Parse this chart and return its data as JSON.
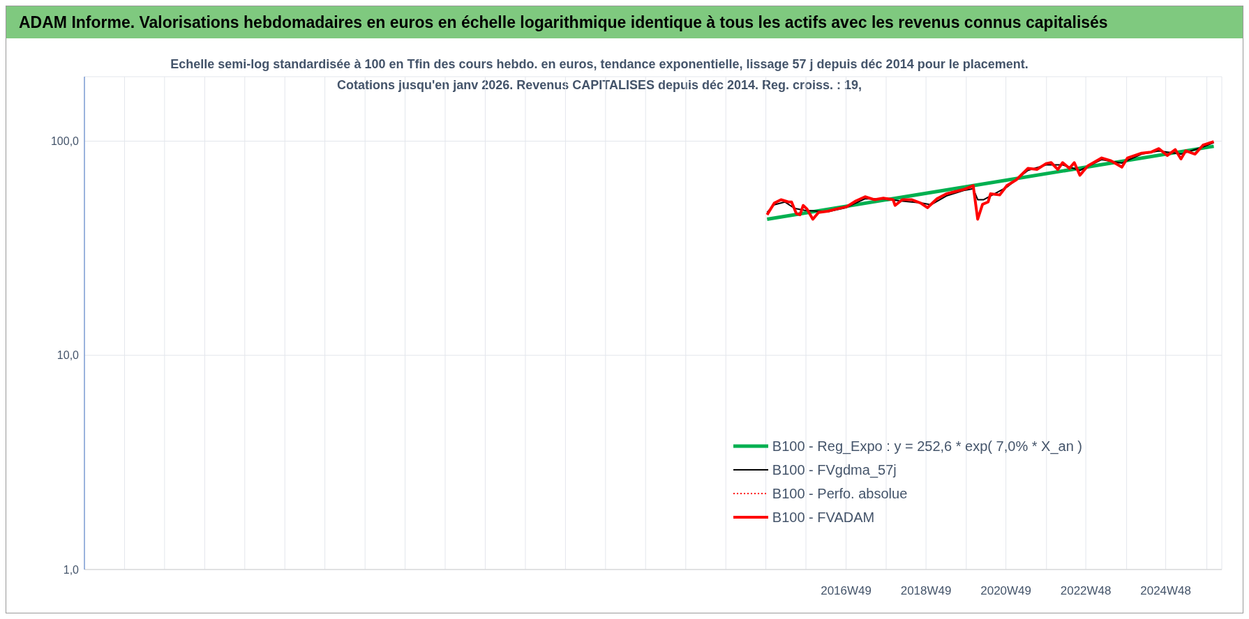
{
  "chart_data": {
    "type": "line",
    "title": "ADAM Informe. Valorisations hebdomadaires en euros en échelle logarithmique identique à tous les actifs avec les revenus connus capitalisés",
    "subtitle": "Echelle semi-log standardisée à 100 en Tfin des cours hebdo. en euros, tendance exponentielle, lissage 57 j depuis déc 2014 pour le placement. Cotations jusqu'en janv 2026. Revenus CAPITALISES depuis déc 2014. Reg. croiss. : 19,",
    "log": "y",
    "grid": true,
    "legend": "bottom right",
    "ylim": [
      1,
      200
    ],
    "yticks": [
      {
        "value": 1,
        "label": "1,0"
      },
      {
        "value": 10,
        "label": "10,0"
      },
      {
        "value": 100,
        "label": "100,0"
      }
    ],
    "xlim": [
      "1997-12-05",
      "2026-04-20"
    ],
    "xticks": [
      {
        "value": "1997-12-05",
        "label": null
      },
      {
        "value": "1998-12-05",
        "label": null
      },
      {
        "value": "1999-12-05",
        "label": null
      },
      {
        "value": "2000-12-05",
        "label": null
      },
      {
        "value": "2001-12-05",
        "label": null
      },
      {
        "value": "2002-12-05",
        "label": null
      },
      {
        "value": "2003-12-05",
        "label": null
      },
      {
        "value": "2004-12-05",
        "label": null
      },
      {
        "value": "2005-12-05",
        "label": null
      },
      {
        "value": "2006-12-05",
        "label": null
      },
      {
        "value": "2007-12-05",
        "label": null
      },
      {
        "value": "2008-12-05",
        "label": null
      },
      {
        "value": "2009-12-05",
        "label": null
      },
      {
        "value": "2010-12-05",
        "label": null
      },
      {
        "value": "2011-12-05",
        "label": null
      },
      {
        "value": "2012-12-05",
        "label": null
      },
      {
        "value": "2013-12-05",
        "label": null
      },
      {
        "value": "2014-12-05",
        "label": null
      },
      {
        "value": "2015-12-05",
        "label": null
      },
      {
        "value": "2016-12-05",
        "label": "2016W49"
      },
      {
        "value": "2017-12-05",
        "label": null
      },
      {
        "value": "2018-12-03",
        "label": "2018W49"
      },
      {
        "value": "2019-12-05",
        "label": null
      },
      {
        "value": "2020-11-30",
        "label": "2020W49"
      },
      {
        "value": "2021-12-05",
        "label": null
      },
      {
        "value": "2022-11-28",
        "label": "2022W48"
      },
      {
        "value": "2023-12-05",
        "label": null
      },
      {
        "value": "2024-11-25",
        "label": "2024W48"
      },
      {
        "value": "2025-12-05",
        "label": null
      }
    ],
    "series": [
      {
        "name": "B100 - Reg_Expo : y = 252,6 * exp( 7,0% *  X_an )",
        "color": "#00b050",
        "line_style": "solid",
        "x": [
          "2014-12-16",
          "2026-02-06"
        ],
        "values": [
          43.2,
          94.6
        ]
      },
      {
        "name": "B100 - FVgdma_57j",
        "color": "#000000",
        "line_style": "solid",
        "x": [
          "2014-12-16",
          "2015-02-20",
          "2015-05-27",
          "2015-08-26",
          "2015-11-24",
          "2016-06-21",
          "2016-12-09",
          "2017-05-27",
          "2017-11-10",
          "2018-05-01",
          "2018-10-16",
          "2019-01-19",
          "2019-06-07",
          "2019-11-21",
          "2020-02-06",
          "2020-03-18",
          "2020-05-12",
          "2020-07-13",
          "2020-12-09",
          "2021-06-18",
          "2021-12-02",
          "2022-05-01",
          "2022-10-05",
          "2023-04-22",
          "2023-10-23",
          "2024-04-20",
          "2024-09-24",
          "2025-04-13",
          "2025-10-31",
          "2026-02-06"
        ],
        "values": [
          46.5,
          50.5,
          52,
          48.5,
          47.5,
          46.8,
          49,
          53.8,
          53.8,
          52.5,
          51.5,
          50.5,
          55.5,
          59,
          60,
          53.3,
          53.3,
          55.5,
          61,
          73,
          77.5,
          77.5,
          73,
          82,
          79,
          87,
          90,
          87,
          94,
          98.5
        ]
      },
      {
        "name": "B100 - Perfo. absolue",
        "color": "#ff0000",
        "line_style": "dotted"
      },
      {
        "name": "B100 - FVADAM",
        "color": "#ff0000",
        "line_style": "solid",
        "x": [
          "2014-12-16",
          "2015-02-20",
          "2015-04-22",
          "2015-06-28",
          "2015-07-27",
          "2015-09-09",
          "2015-10-12",
          "2015-11-10",
          "2015-12-13",
          "2016-02-06",
          "2016-03-29",
          "2016-06-21",
          "2016-09-13",
          "2016-12-09",
          "2017-03-04",
          "2017-05-27",
          "2017-08-19",
          "2017-11-10",
          "2018-02-06",
          "2018-02-24",
          "2018-05-01",
          "2018-07-24",
          "2018-10-16",
          "2018-12-16",
          "2019-03-14",
          "2019-06-07",
          "2019-08-29",
          "2019-11-21",
          "2020-02-06",
          "2020-03-18",
          "2020-05-01",
          "2020-06-21",
          "2020-07-13",
          "2020-10-05",
          "2020-12-09",
          "2021-03-04",
          "2021-06-18",
          "2021-09-09",
          "2021-12-02",
          "2022-01-16",
          "2022-03-18",
          "2022-05-01",
          "2022-07-02",
          "2022-08-15",
          "2022-10-05",
          "2022-12-16",
          "2023-04-22",
          "2023-07-16",
          "2023-10-23",
          "2023-12-13",
          "2024-04-20",
          "2024-07-13",
          "2024-09-24",
          "2024-12-09",
          "2025-02-20",
          "2025-04-13",
          "2025-05-27",
          "2025-08-19",
          "2025-10-31",
          "2026-02-06"
        ],
        "values": [
          45.3,
          51.4,
          53.3,
          52,
          52,
          45.9,
          45.3,
          50.1,
          48.3,
          43.2,
          46.5,
          47.1,
          48.3,
          49.4,
          52.6,
          55,
          53.3,
          54.2,
          53.3,
          50.1,
          53.3,
          53.3,
          51.4,
          48.9,
          53.9,
          56.8,
          58.2,
          59.7,
          62,
          43.2,
          50.7,
          52,
          56.8,
          56.1,
          62,
          65.9,
          74.6,
          73.8,
          78.6,
          79.4,
          73.8,
          79.4,
          74.6,
          79.4,
          69.3,
          76.6,
          83.5,
          80.9,
          75.6,
          83.5,
          87.9,
          88.8,
          92.3,
          85.7,
          91.3,
          82.6,
          90.2,
          87,
          95.8,
          99.5
        ]
      }
    ]
  }
}
